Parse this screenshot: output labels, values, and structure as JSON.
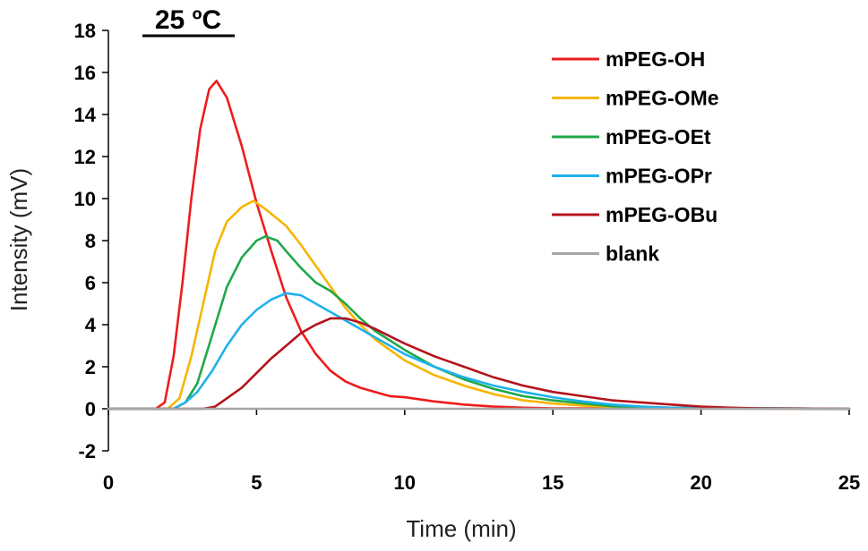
{
  "chart_data": {
    "type": "line",
    "title": "25 ºC",
    "xlabel": "Time (min)",
    "ylabel": "Intensity (mV)",
    "xlim": [
      0,
      25
    ],
    "ylim": [
      -2,
      18
    ],
    "x_ticks": [
      0,
      5,
      10,
      15,
      20,
      25
    ],
    "y_ticks": [
      -2,
      0,
      2,
      4,
      6,
      8,
      10,
      12,
      14,
      16,
      18
    ],
    "grid": false,
    "legend_position": "top-right",
    "series": [
      {
        "name": "mPEG-OH",
        "color": "#ee1c1c",
        "points": [
          [
            0,
            0
          ],
          [
            1.6,
            0
          ],
          [
            1.9,
            0.3
          ],
          [
            2.2,
            2.5
          ],
          [
            2.5,
            6
          ],
          [
            2.8,
            10
          ],
          [
            3.1,
            13.3
          ],
          [
            3.4,
            15.2
          ],
          [
            3.65,
            15.6
          ],
          [
            4.0,
            14.8
          ],
          [
            4.5,
            12.5
          ],
          [
            5.0,
            9.8
          ],
          [
            5.5,
            7.5
          ],
          [
            6.0,
            5.3
          ],
          [
            6.5,
            3.7
          ],
          [
            7.0,
            2.6
          ],
          [
            7.5,
            1.8
          ],
          [
            8.0,
            1.3
          ],
          [
            8.5,
            1.0
          ],
          [
            9.0,
            0.8
          ],
          [
            9.5,
            0.6
          ],
          [
            10.0,
            0.55
          ],
          [
            10.5,
            0.45
          ],
          [
            11.0,
            0.35
          ],
          [
            12.0,
            0.2
          ],
          [
            13.0,
            0.1
          ],
          [
            14.0,
            0.05
          ],
          [
            15.0,
            0.02
          ],
          [
            25.0,
            0
          ]
        ]
      },
      {
        "name": "mPEG-OMe",
        "color": "#f7b500",
        "points": [
          [
            0,
            0
          ],
          [
            2.0,
            0
          ],
          [
            2.4,
            0.5
          ],
          [
            2.8,
            2.5
          ],
          [
            3.2,
            5
          ],
          [
            3.6,
            7.5
          ],
          [
            4.0,
            8.9
          ],
          [
            4.5,
            9.6
          ],
          [
            4.9,
            9.9
          ],
          [
            5.3,
            9.5
          ],
          [
            6.0,
            8.7
          ],
          [
            6.5,
            7.8
          ],
          [
            7.0,
            6.8
          ],
          [
            7.5,
            5.8
          ],
          [
            8.0,
            4.8
          ],
          [
            8.5,
            4.0
          ],
          [
            9.0,
            3.3
          ],
          [
            10.0,
            2.3
          ],
          [
            11.0,
            1.6
          ],
          [
            12.0,
            1.1
          ],
          [
            13.0,
            0.7
          ],
          [
            14.0,
            0.4
          ],
          [
            15.0,
            0.25
          ],
          [
            16.0,
            0.15
          ],
          [
            17.0,
            0.08
          ],
          [
            18.0,
            0.03
          ],
          [
            25.0,
            0
          ]
        ]
      },
      {
        "name": "mPEG-OEt",
        "color": "#1fa84a",
        "points": [
          [
            0,
            0
          ],
          [
            2.2,
            0
          ],
          [
            2.6,
            0.3
          ],
          [
            3.0,
            1.2
          ],
          [
            3.5,
            3.5
          ],
          [
            4.0,
            5.8
          ],
          [
            4.5,
            7.2
          ],
          [
            5.0,
            8.0
          ],
          [
            5.3,
            8.2
          ],
          [
            5.7,
            8.0
          ],
          [
            6.0,
            7.5
          ],
          [
            6.5,
            6.7
          ],
          [
            7.0,
            6.0
          ],
          [
            7.5,
            5.6
          ],
          [
            8.0,
            5.0
          ],
          [
            8.5,
            4.3
          ],
          [
            9.0,
            3.7
          ],
          [
            10.0,
            2.8
          ],
          [
            11.0,
            2.0
          ],
          [
            12.0,
            1.4
          ],
          [
            13.0,
            0.95
          ],
          [
            14.0,
            0.6
          ],
          [
            15.0,
            0.4
          ],
          [
            16.0,
            0.25
          ],
          [
            17.0,
            0.12
          ],
          [
            18.0,
            0.06
          ],
          [
            25.0,
            0
          ]
        ]
      },
      {
        "name": "mPEG-OPr",
        "color": "#1fb1ec",
        "points": [
          [
            0,
            0
          ],
          [
            2.2,
            0
          ],
          [
            2.6,
            0.3
          ],
          [
            3.0,
            0.8
          ],
          [
            3.5,
            1.8
          ],
          [
            4.0,
            3.0
          ],
          [
            4.5,
            4.0
          ],
          [
            5.0,
            4.7
          ],
          [
            5.5,
            5.2
          ],
          [
            6.0,
            5.5
          ],
          [
            6.5,
            5.4
          ],
          [
            7.0,
            5.0
          ],
          [
            7.5,
            4.6
          ],
          [
            8.0,
            4.2
          ],
          [
            8.5,
            3.8
          ],
          [
            9.0,
            3.4
          ],
          [
            10.0,
            2.6
          ],
          [
            11.0,
            2.0
          ],
          [
            12.0,
            1.5
          ],
          [
            13.0,
            1.1
          ],
          [
            14.0,
            0.8
          ],
          [
            15.0,
            0.55
          ],
          [
            16.0,
            0.35
          ],
          [
            17.0,
            0.2
          ],
          [
            18.0,
            0.1
          ],
          [
            19.0,
            0.05
          ],
          [
            25.0,
            0
          ]
        ]
      },
      {
        "name": "mPEG-OBu",
        "color": "#b3141c",
        "points": [
          [
            0,
            0
          ],
          [
            3.2,
            0
          ],
          [
            3.6,
            0.1
          ],
          [
            4.0,
            0.5
          ],
          [
            4.5,
            1.0
          ],
          [
            5.0,
            1.7
          ],
          [
            5.5,
            2.4
          ],
          [
            6.0,
            3.0
          ],
          [
            6.5,
            3.6
          ],
          [
            7.0,
            4.0
          ],
          [
            7.5,
            4.3
          ],
          [
            8.0,
            4.3
          ],
          [
            8.5,
            4.1
          ],
          [
            9.0,
            3.8
          ],
          [
            10.0,
            3.1
          ],
          [
            11.0,
            2.5
          ],
          [
            12.0,
            2.0
          ],
          [
            13.0,
            1.5
          ],
          [
            14.0,
            1.1
          ],
          [
            15.0,
            0.8
          ],
          [
            16.0,
            0.6
          ],
          [
            17.0,
            0.4
          ],
          [
            18.0,
            0.3
          ],
          [
            19.0,
            0.2
          ],
          [
            20.0,
            0.1
          ],
          [
            21.0,
            0.05
          ],
          [
            22.0,
            0.02
          ],
          [
            25.0,
            0
          ]
        ]
      },
      {
        "name": "blank",
        "color": "#a6a6a6",
        "points": [
          [
            0,
            0
          ],
          [
            25,
            0
          ]
        ]
      }
    ]
  }
}
